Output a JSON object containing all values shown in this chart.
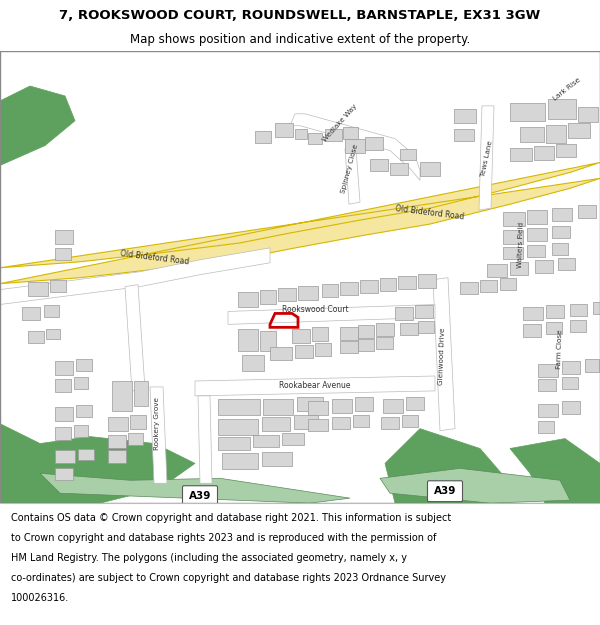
{
  "title_line1": "7, ROOKSWOOD COURT, ROUNDSWELL, BARNSTAPLE, EX31 3GW",
  "title_line2": "Map shows position and indicative extent of the property.",
  "footer_lines": [
    "Contains OS data © Crown copyright and database right 2021. This information is subject",
    "to Crown copyright and database rights 2023 and is reproduced with the permission of",
    "HM Land Registry. The polygons (including the associated geometry, namely x, y",
    "co-ordinates) are subject to Crown copyright and database rights 2023 Ordnance Survey",
    "100026316."
  ],
  "map_bg": "#ffffff",
  "road_yellow_fill": "#f5e6a0",
  "road_yellow_edge": "#d4b800",
  "road_white": "#ffffff",
  "road_gray_edge": "#bbbbbb",
  "building_fill": "#d6d6d6",
  "building_edge": "#999999",
  "green_dark": "#5ea05e",
  "green_light": "#a8cfa8",
  "highlight_red": "#cc0000",
  "text_dark": "#222222",
  "title_fs": 9.5,
  "subtitle_fs": 8.5,
  "footer_fs": 7.0,
  "label_fs": 5.8,
  "road_label_fs": 5.5
}
